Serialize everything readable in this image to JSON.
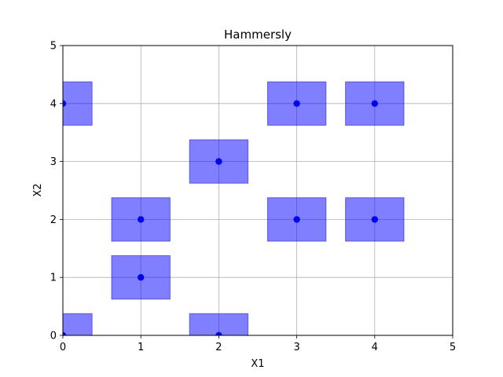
{
  "chart_data": {
    "type": "scatter",
    "title": "Hammersly",
    "xlabel": "X1",
    "ylabel": "X2",
    "xlim": [
      0,
      5
    ],
    "ylim": [
      0,
      5
    ],
    "xticks": [
      "0",
      "1",
      "2",
      "3",
      "4",
      "5"
    ],
    "yticks": [
      "0",
      "1",
      "2",
      "3",
      "4",
      "5"
    ],
    "grid": true,
    "legend": "none",
    "point_color": "#0000ff",
    "box_color": "#0000ff",
    "box_half_width": 0.375,
    "points": [
      {
        "x": 0,
        "y": 0
      },
      {
        "x": 0,
        "y": 4
      },
      {
        "x": 1,
        "y": 1
      },
      {
        "x": 1,
        "y": 2
      },
      {
        "x": 2,
        "y": 0
      },
      {
        "x": 2,
        "y": 3
      },
      {
        "x": 3,
        "y": 2
      },
      {
        "x": 3,
        "y": 4
      },
      {
        "x": 4,
        "y": 2
      },
      {
        "x": 4,
        "y": 4
      }
    ]
  }
}
